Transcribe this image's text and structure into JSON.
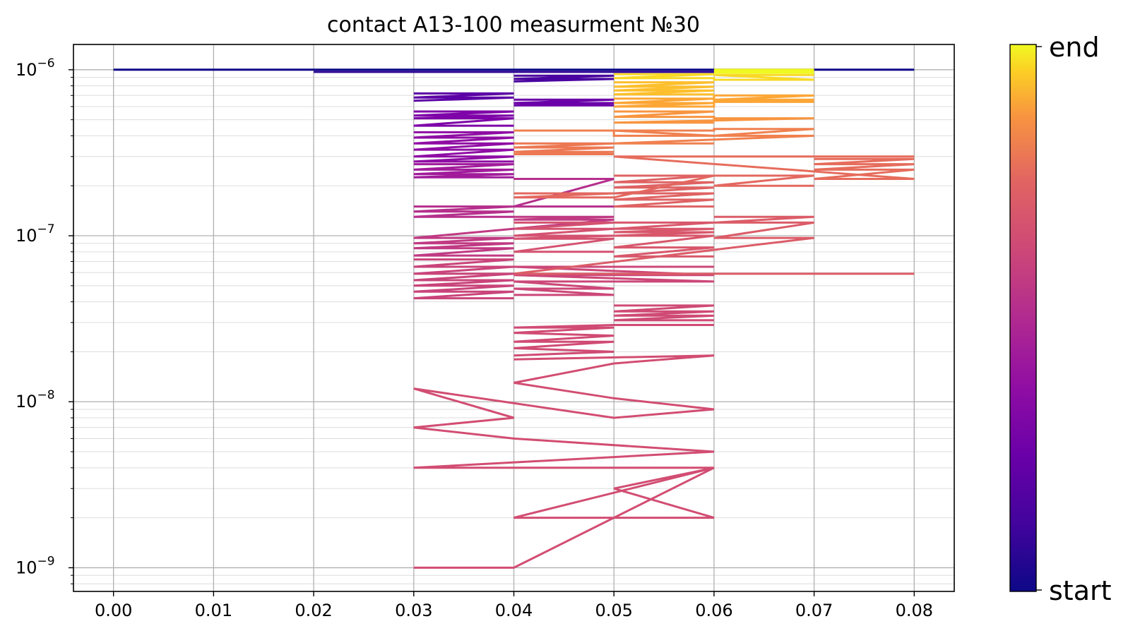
{
  "chart_data": {
    "type": "line",
    "title": "contact A13-100 measurment №30",
    "xlabel": "",
    "ylabel": "",
    "x_scale": "linear",
    "y_scale": "log",
    "xlim": [
      -0.004,
      0.084
    ],
    "ylim": [
      7.2e-10,
      1.42e-06
    ],
    "x_ticks": [
      "0.00",
      "0.01",
      "0.02",
      "0.03",
      "0.04",
      "0.05",
      "0.06",
      "0.07",
      "0.08"
    ],
    "y_ticks": [
      {
        "base": "10",
        "exp": "−9",
        "value": 1e-09
      },
      {
        "base": "10",
        "exp": "−8",
        "value": 1e-08
      },
      {
        "base": "10",
        "exp": "−7",
        "value": 1e-07
      },
      {
        "base": "10",
        "exp": "−6",
        "value": 1e-06
      }
    ],
    "grid": "major and minor",
    "colormap": "plasma",
    "colorbar": {
      "start_label": "start",
      "end_label": "end"
    },
    "series": [
      {
        "color": "#0d0887",
        "x": [
          0.0,
          0.08
        ],
        "y": [
          1e-06,
          1e-06
        ]
      },
      {
        "color": "#2c0594",
        "x": [
          0.02,
          0.03,
          0.04,
          0.05,
          0.06
        ],
        "y": [
          9.7e-07,
          9.7e-07,
          9.7e-07,
          9.7e-07,
          9.7e-07
        ]
      },
      {
        "color": "#4903a0",
        "x": [
          0.04,
          0.05,
          0.04,
          0.05,
          0.04
        ],
        "y": [
          9.2e-07,
          9.2e-07,
          8.8e-07,
          8.8e-07,
          8.5e-07
        ]
      },
      {
        "color": "#5c01a6",
        "x": [
          0.03,
          0.04,
          0.03,
          0.04,
          0.03
        ],
        "y": [
          7.2e-07,
          7.2e-07,
          6.8e-07,
          6.8e-07,
          6.5e-07
        ]
      },
      {
        "color": "#6a00a8",
        "x": [
          0.04,
          0.05,
          0.04,
          0.05,
          0.04,
          0.05
        ],
        "y": [
          6.6e-07,
          6.6e-07,
          6.3e-07,
          6.3e-07,
          6.1e-07,
          6.1e-07
        ]
      },
      {
        "color": "#7e03a8",
        "x": [
          0.03,
          0.04,
          0.03,
          0.04,
          0.03,
          0.04,
          0.03,
          0.04
        ],
        "y": [
          5.6e-07,
          5.6e-07,
          5.3e-07,
          5.3e-07,
          5.1e-07,
          5.1e-07,
          4.6e-07,
          4.6e-07
        ]
      },
      {
        "color": "#8f0da4",
        "x": [
          0.03,
          0.04,
          0.03,
          0.04,
          0.03,
          0.04,
          0.03,
          0.04,
          0.03,
          0.04,
          0.03,
          0.04
        ],
        "y": [
          4.2e-07,
          4.2e-07,
          3.9e-07,
          3.9e-07,
          3.6e-07,
          3.6e-07,
          3.3e-07,
          3.3e-07,
          3e-07,
          3e-07,
          2.8e-07,
          2.8e-07
        ]
      },
      {
        "color": "#a11b9b",
        "x": [
          0.03,
          0.04,
          0.03,
          0.04,
          0.03,
          0.04,
          0.03,
          0.04
        ],
        "y": [
          2.7e-07,
          2.7e-07,
          2.5e-07,
          2.5e-07,
          2.35e-07,
          2.35e-07,
          2.25e-07,
          2.25e-07
        ]
      },
      {
        "color": "#b52f8c",
        "x": [
          0.04,
          0.05,
          0.04,
          0.05,
          0.03,
          0.04,
          0.03,
          0.04,
          0.03,
          0.04
        ],
        "y": [
          2.2e-07,
          2.2e-07,
          1.5e-07,
          1.5e-07,
          1.5e-07,
          1.5e-07,
          1.4e-07,
          1.4e-07,
          1.3e-07,
          1.3e-07
        ]
      },
      {
        "color": "#c03a83",
        "x": [
          0.04,
          0.05,
          0.04,
          0.05,
          0.03,
          0.04,
          0.03,
          0.04,
          0.03,
          0.04,
          0.03,
          0.04
        ],
        "y": [
          1.3e-07,
          1.3e-07,
          1.25e-07,
          1.25e-07,
          9.7e-08,
          9.7e-08,
          9e-08,
          9e-08,
          8.4e-08,
          8.4e-08,
          7.6e-08,
          7.6e-08
        ]
      },
      {
        "color": "#c9447a",
        "x": [
          0.03,
          0.04,
          0.03,
          0.04,
          0.03,
          0.04,
          0.03,
          0.04,
          0.03,
          0.04,
          0.03,
          0.04,
          0.03,
          0.04
        ],
        "y": [
          7.2e-08,
          7.2e-08,
          6.5e-08,
          6.5e-08,
          5.9e-08,
          5.9e-08,
          5.4e-08,
          5.4e-08,
          5e-08,
          5e-08,
          4.6e-08,
          4.6e-08,
          4.2e-08,
          4.2e-08
        ]
      },
      {
        "color": "#cc4778",
        "x": [
          0.04,
          0.05,
          0.04,
          0.05,
          0.04,
          0.06,
          0.04,
          0.06,
          0.04,
          0.06
        ],
        "y": [
          4.4e-08,
          4.4e-08,
          4.8e-08,
          4.8e-08,
          5.3e-08,
          5.3e-08,
          5.8e-08,
          5.8e-08,
          6.5e-08,
          6.5e-08
        ]
      },
      {
        "color": "#cf4a75",
        "x": [
          0.05,
          0.06,
          0.05,
          0.06,
          0.05,
          0.06,
          0.05,
          0.06
        ],
        "y": [
          3.8e-08,
          3.8e-08,
          3.5e-08,
          3.5e-08,
          3.3e-08,
          3.3e-08,
          3.1e-08,
          3.1e-08
        ]
      },
      {
        "color": "#d04b74",
        "x": [
          0.06,
          0.05,
          0.04,
          0.05,
          0.04,
          0.05,
          0.04,
          0.05,
          0.04,
          0.05,
          0.04
        ],
        "y": [
          2.9e-08,
          2.9e-08,
          2.8e-08,
          2.8e-08,
          2.6e-08,
          2.5e-08,
          2.3e-08,
          2.3e-08,
          2.1e-08,
          2e-08,
          1.9e-08
        ]
      },
      {
        "color": "#d24d72",
        "x": [
          0.04,
          0.06,
          0.05,
          0.04,
          0.05,
          0.06,
          0.05,
          0.03,
          0.04,
          0.03,
          0.04,
          0.06,
          0.03,
          0.06,
          0.04,
          0.06,
          0.05,
          0.06,
          0.04,
          0.03
        ],
        "y": [
          1.8e-08,
          1.9e-08,
          1.7e-08,
          1.3e-08,
          1.05e-08,
          9e-09,
          8e-09,
          1.2e-08,
          8e-09,
          7e-09,
          6e-09,
          5e-09,
          4e-09,
          4e-09,
          2e-09,
          2e-09,
          3e-09,
          4e-09,
          1e-09,
          1e-09
        ]
      },
      {
        "color": "#d45270",
        "x": [
          0.04,
          0.05,
          0.04,
          0.05,
          0.04,
          0.05,
          0.04,
          0.05,
          0.04,
          0.05
        ],
        "y": [
          1.2e-07,
          1.2e-07,
          1.1e-07,
          1.1e-07,
          1e-07,
          1e-07,
          9.6e-08,
          9.6e-08,
          8e-08,
          8e-08
        ]
      },
      {
        "color": "#d8576b",
        "x": [
          0.05,
          0.06,
          0.05,
          0.06,
          0.05,
          0.06,
          0.05,
          0.06,
          0.05,
          0.06,
          0.05,
          0.06
        ],
        "y": [
          1.2e-07,
          1.2e-07,
          1.1e-07,
          1.1e-07,
          1.05e-07,
          1.05e-07,
          1e-07,
          1e-07,
          8.5e-08,
          8.5e-08,
          7.5e-08,
          7.5e-08
        ]
      },
      {
        "color": "#db5c68",
        "x": [
          0.06,
          0.07,
          0.06,
          0.07,
          0.06,
          0.07,
          0.04,
          0.08
        ],
        "y": [
          1.3e-07,
          1.3e-07,
          1.2e-07,
          1.2e-07,
          9.7e-08,
          9.7e-08,
          5.9e-08,
          5.9e-08
        ]
      },
      {
        "color": "#df6263",
        "x": [
          0.05,
          0.06,
          0.05,
          0.06,
          0.05,
          0.06,
          0.05,
          0.06,
          0.05,
          0.06,
          0.05,
          0.06
        ],
        "y": [
          2.3e-07,
          2.3e-07,
          2.1e-07,
          2.1e-07,
          1.95e-07,
          1.95e-07,
          1.8e-07,
          1.8e-07,
          1.65e-07,
          1.65e-07,
          1.5e-07,
          1.5e-07
        ]
      },
      {
        "color": "#e3685f",
        "x": [
          0.04,
          0.05,
          0.04,
          0.05,
          0.06,
          0.07,
          0.06,
          0.07
        ],
        "y": [
          1.8e-07,
          1.8e-07,
          1.7e-07,
          1.7e-07,
          2.3e-07,
          2.3e-07,
          2e-07,
          2e-07
        ]
      },
      {
        "color": "#e66c5c",
        "x": [
          0.07,
          0.08,
          0.07,
          0.08,
          0.07,
          0.08,
          0.07,
          0.08,
          0.05,
          0.08
        ],
        "y": [
          2.9e-07,
          2.9e-07,
          2.7e-07,
          2.7e-07,
          2.5e-07,
          2.5e-07,
          2.2e-07,
          2.2e-07,
          3e-07,
          3e-07
        ]
      },
      {
        "color": "#ec7853",
        "x": [
          0.04,
          0.05,
          0.04,
          0.05,
          0.04,
          0.05,
          0.04,
          0.05
        ],
        "y": [
          3.6e-07,
          3.6e-07,
          3.4e-07,
          3.4e-07,
          3.2e-07,
          3.2e-07,
          3.1e-07,
          3.1e-07
        ]
      },
      {
        "color": "#f0804e",
        "x": [
          0.04,
          0.05,
          0.05,
          0.06,
          0.05,
          0.06,
          0.06,
          0.07,
          0.06,
          0.07,
          0.05,
          0.06
        ],
        "y": [
          4.3e-07,
          4.3e-07,
          4e-07,
          4e-07,
          4.3e-07,
          4.3e-07,
          4.4e-07,
          4.4e-07,
          4e-07,
          4e-07,
          3.6e-07,
          3.6e-07
        ]
      },
      {
        "color": "#f89540",
        "x": [
          0.05,
          0.06,
          0.05,
          0.06,
          0.06,
          0.07,
          0.05,
          0.06
        ],
        "y": [
          5.6e-07,
          5.6e-07,
          5.2e-07,
          5.2e-07,
          5.1e-07,
          5.1e-07,
          4.8e-07,
          4.8e-07
        ]
      },
      {
        "color": "#fca636",
        "x": [
          0.05,
          0.06,
          0.05,
          0.06,
          0.05,
          0.06,
          0.06,
          0.07,
          0.06,
          0.07,
          0.06,
          0.07
        ],
        "y": [
          6.7e-07,
          6.7e-07,
          6.3e-07,
          6.3e-07,
          6e-07,
          6e-07,
          7e-07,
          7e-07,
          6.6e-07,
          6.6e-07,
          6.4e-07,
          6.4e-07
        ]
      },
      {
        "color": "#fdbf2b",
        "x": [
          0.05,
          0.06,
          0.05,
          0.06,
          0.05,
          0.06,
          0.05,
          0.06
        ],
        "y": [
          8.4e-07,
          8.4e-07,
          7.9e-07,
          7.9e-07,
          7.5e-07,
          7.5e-07,
          7.1e-07,
          7.1e-07
        ]
      },
      {
        "color": "#f8d925",
        "x": [
          0.05,
          0.06,
          0.05,
          0.06,
          0.06,
          0.07,
          0.06,
          0.07
        ],
        "y": [
          9.4e-07,
          9.4e-07,
          8.9e-07,
          8.9e-07,
          8.7e-07,
          8.7e-07,
          9.3e-07,
          9.3e-07
        ]
      },
      {
        "color": "#f0f921",
        "x": [
          0.06,
          0.07,
          0.06,
          0.07,
          0.06,
          0.07
        ],
        "y": [
          1e-06,
          1e-06,
          9.8e-07,
          9.8e-07,
          9.6e-07,
          9.6e-07
        ]
      }
    ]
  }
}
